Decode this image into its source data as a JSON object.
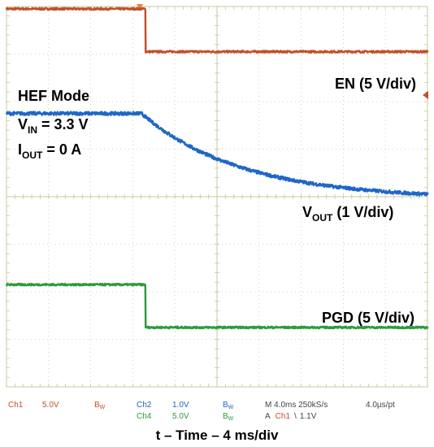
{
  "chart_data": {
    "type": "line",
    "title": "",
    "xlabel": "t – Time – 4 ms/div",
    "time_per_div_ms": 4,
    "x_range_ms": [
      0,
      40
    ],
    "divisions": {
      "x": 10,
      "y": 8
    },
    "grid": true,
    "colors": {
      "grid": "#c8c8a0",
      "ch1": "#c0502a",
      "ch2": "#1f66c7",
      "ch4": "#2d9a3c"
    },
    "annotations": {
      "mode": "HEF Mode",
      "vin_main": "V",
      "vin_sub": "IN",
      "vin_rest": " = 3.3 V",
      "iout_main": "I",
      "iout_sub": "OUT",
      "iout_rest": " = 0 A"
    },
    "series": [
      {
        "name": "EN (5 V/div)",
        "label_main": "EN (5 V/div)",
        "color": "#c0502a",
        "scale": "5 V/div",
        "high_div": 7.95,
        "low_div": 7.05,
        "step_ms": 13.2,
        "noise_div": 0.02,
        "x_ms": [
          0,
          13.2,
          13.2,
          40
        ],
        "values_div": [
          7.95,
          7.95,
          7.05,
          7.05
        ]
      },
      {
        "name": "VOUT (1 V/div)",
        "label_main": "V",
        "label_sub": "OUT",
        "label_rest": " (1 V/div)",
        "color": "#1f66c7",
        "scale": "1 V/div",
        "start_div": 5.75,
        "end_div": 3.95,
        "start_ms": 12.8,
        "tau_ms": 9.5,
        "noise_div": 0.035,
        "x_ms": [
          0,
          12.8,
          16,
          20,
          24,
          28,
          32,
          36,
          40
        ],
        "values_div": [
          5.75,
          5.75,
          5.3,
          4.96,
          4.66,
          4.42,
          4.25,
          4.13,
          4.05
        ]
      },
      {
        "name": "PGD (5 V/div)",
        "label_main": "PGD (5 V/div)",
        "color": "#2d9a3c",
        "scale": "5 V/div",
        "high_div": 2.15,
        "low_div": 1.25,
        "step_ms": 13.2,
        "noise_div": 0.02,
        "x_ms": [
          0,
          13.2,
          13.2,
          40
        ],
        "values_div": [
          2.15,
          2.15,
          1.25,
          1.25
        ]
      }
    ],
    "status": {
      "ch1": "Ch1",
      "ch1_scale": "5.0V",
      "bw1": "B",
      "ch2": "Ch2",
      "ch2_scale": "1.0V",
      "bw2": "B",
      "ch4": "Ch4",
      "ch4_scale": "5.0V",
      "bw4": "B",
      "bw_sub": "W",
      "timebase": "M 4.0ms 250kS/s",
      "per_point": "4.0µs/pt",
      "trigger_a": "A",
      "trigger_ch": "Ch1",
      "trigger_slope": "\\",
      "trigger_level": "1.1V"
    }
  }
}
